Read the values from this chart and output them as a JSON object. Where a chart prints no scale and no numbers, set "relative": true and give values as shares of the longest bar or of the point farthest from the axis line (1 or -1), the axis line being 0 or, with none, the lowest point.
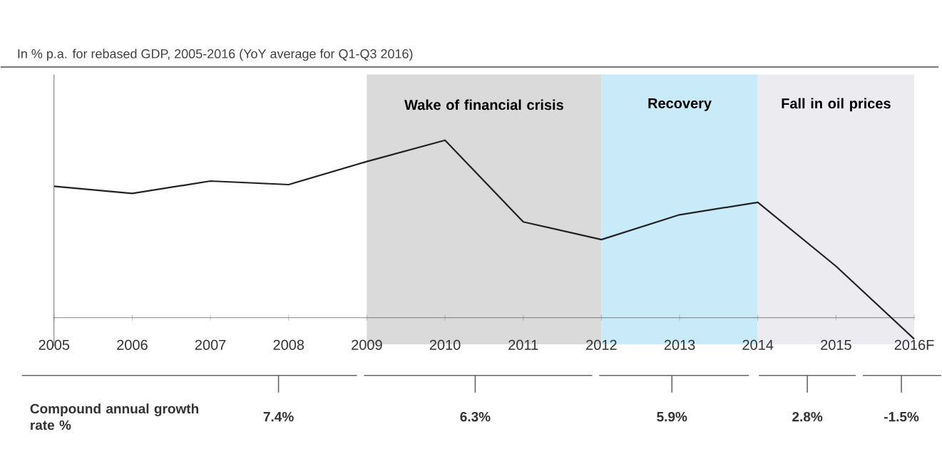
{
  "chart_data": {
    "type": "line",
    "relative": true,
    "title": "In % p.a. for rebased GDP, 2005-2016 (YoY average for Q1-Q3 2016)",
    "categories": [
      "2005",
      "2006",
      "2007",
      "2008",
      "2009",
      "2010",
      "2011",
      "2012",
      "2013",
      "2014",
      "2015",
      "2016F"
    ],
    "series": [
      {
        "color": "#222222",
        "values": [
          0.74,
          0.7,
          0.77,
          0.75,
          0.88,
          1,
          0.54,
          0.44,
          0.58,
          0.65,
          0.29,
          -0.12
        ]
      }
    ],
    "bands": [
      {
        "axis": "x",
        "from": "2009",
        "to": "2012",
        "label": "Wake of financial crisis",
        "color": "#dadada"
      },
      {
        "axis": "x",
        "from": "2012",
        "to": "2014",
        "label": "Recovery",
        "color": "#c9eaf8"
      },
      {
        "axis": "x",
        "from": "2014",
        "to": "2016F",
        "label": "Fall in oil prices",
        "color": "#ececf0"
      }
    ],
    "annotations": [
      "Compound annual growth rate %",
      "7.4%",
      "6.3%",
      "5.9%",
      "2.8%",
      "-1.5%"
    ]
  }
}
